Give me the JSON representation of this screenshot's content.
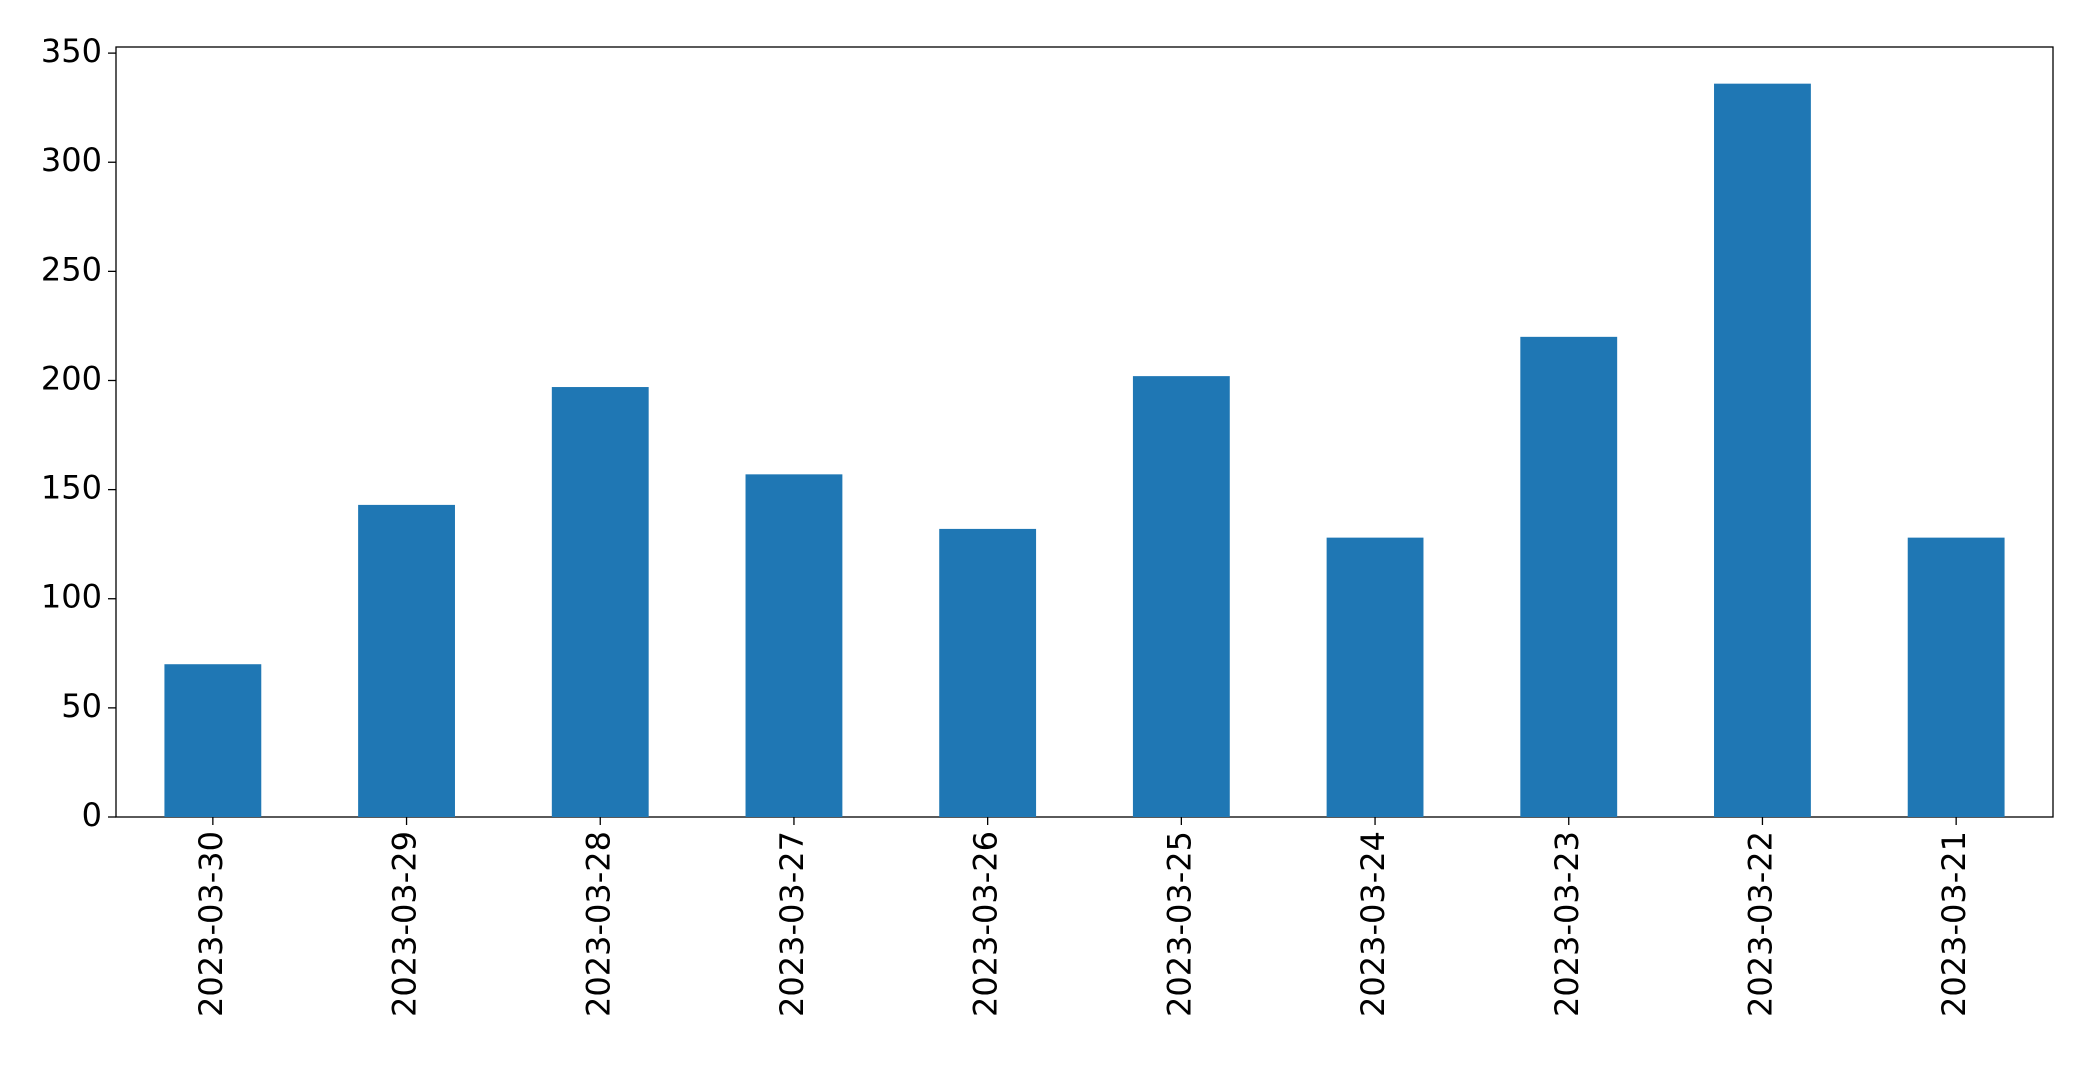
{
  "chart_data": {
    "type": "bar",
    "categories": [
      "2023-03-30",
      "2023-03-29",
      "2023-03-28",
      "2023-03-27",
      "2023-03-26",
      "2023-03-25",
      "2023-03-24",
      "2023-03-23",
      "2023-03-22",
      "2023-03-21"
    ],
    "values": [
      70,
      143,
      197,
      157,
      132,
      202,
      128,
      220,
      336,
      128
    ],
    "color": "#1f77b4",
    "ylim": [
      0,
      352.8
    ],
    "yticks": [
      0,
      50,
      100,
      150,
      200,
      250,
      300,
      350
    ],
    "grid": false
  }
}
